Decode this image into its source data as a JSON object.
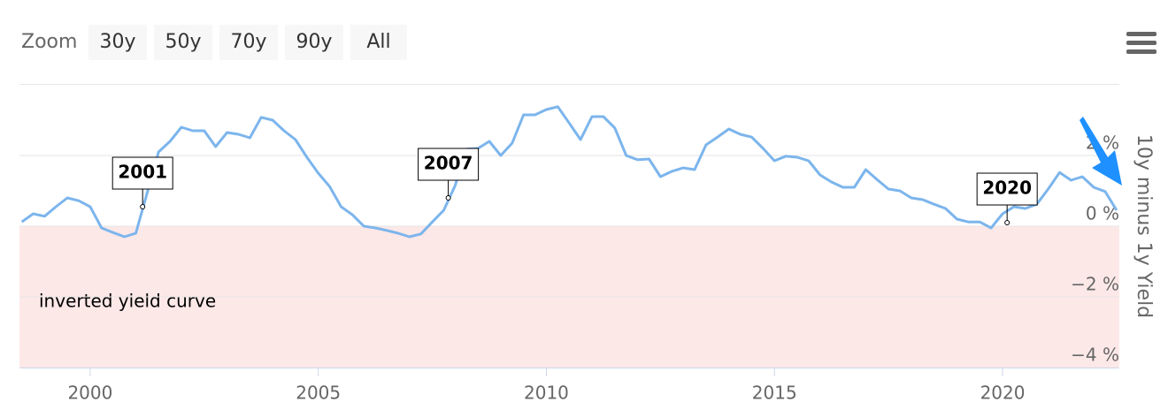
{
  "toolbar": {
    "zoom_label": "Zoom",
    "buttons": [
      "30y",
      "50y",
      "70y",
      "90y",
      "All"
    ]
  },
  "chart_data": {
    "type": "line",
    "color": "#7cb5ec",
    "y_axis_title": "10y minus 1y Yield",
    "xlim": [
      1998.45,
      2022.56
    ],
    "xticks": [
      2000,
      2005,
      2010,
      2015,
      2020
    ],
    "ylim": [
      -4,
      4
    ],
    "yticks": [
      {
        "value": -4,
        "label": "−4 %"
      },
      {
        "value": -2,
        "label": "−2 %"
      },
      {
        "value": 0,
        "label": "0 %"
      },
      {
        "value": 2,
        "label": "2 %"
      }
    ],
    "grid": true,
    "plot_band": {
      "from": 0,
      "to": -4,
      "color": "#fde8e8",
      "label": "inverted yield curve"
    },
    "annotations": [
      {
        "text": "2001",
        "x": 2001.15,
        "y": 0.55
      },
      {
        "text": "2007",
        "x": 2007.85,
        "y": 0.8
      },
      {
        "text": "2020",
        "x": 2020.1,
        "y": 0.1
      }
    ],
    "x": [
      1998.5,
      1998.75,
      1999.0,
      1999.25,
      1999.5,
      1999.75,
      2000.0,
      2000.25,
      2000.5,
      2000.75,
      2001.0,
      2001.25,
      2001.5,
      2001.75,
      2002.0,
      2002.25,
      2002.5,
      2002.75,
      2003.0,
      2003.25,
      2003.5,
      2003.75,
      2004.0,
      2004.25,
      2004.5,
      2004.75,
      2005.0,
      2005.25,
      2005.5,
      2005.75,
      2006.0,
      2006.25,
      2006.5,
      2006.75,
      2007.0,
      2007.25,
      2007.5,
      2007.75,
      2008.0,
      2008.25,
      2008.5,
      2008.75,
      2009.0,
      2009.25,
      2009.5,
      2009.75,
      2010.0,
      2010.25,
      2010.5,
      2010.75,
      2011.0,
      2011.25,
      2011.5,
      2011.75,
      2012.0,
      2012.25,
      2012.5,
      2012.75,
      2013.0,
      2013.25,
      2013.5,
      2013.75,
      2014.0,
      2014.25,
      2014.5,
      2014.75,
      2015.0,
      2015.25,
      2015.5,
      2015.75,
      2016.0,
      2016.25,
      2016.5,
      2016.75,
      2017.0,
      2017.25,
      2017.5,
      2017.75,
      2018.0,
      2018.25,
      2018.5,
      2018.75,
      2019.0,
      2019.25,
      2019.5,
      2019.75,
      2020.0,
      2020.25,
      2020.5,
      2020.75,
      2021.0,
      2021.25,
      2021.5,
      2021.75,
      2022.0,
      2022.25,
      2022.5
    ],
    "values": [
      0.12,
      0.35,
      0.28,
      0.55,
      0.8,
      0.72,
      0.55,
      -0.05,
      -0.18,
      -0.3,
      -0.2,
      0.95,
      2.1,
      2.4,
      2.8,
      2.7,
      2.7,
      2.25,
      2.65,
      2.6,
      2.5,
      3.08,
      3.0,
      2.7,
      2.45,
      1.95,
      1.5,
      1.12,
      0.55,
      0.32,
      0,
      -0.05,
      -0.12,
      -0.2,
      -0.3,
      -0.22,
      0.12,
      0.45,
      1.15,
      2.18,
      2.2,
      2.4,
      2.0,
      2.35,
      3.15,
      3.15,
      3.3,
      3.38,
      2.92,
      2.45,
      3.1,
      3.1,
      2.78,
      2.0,
      1.88,
      1.9,
      1.4,
      1.55,
      1.65,
      1.6,
      2.3,
      2.52,
      2.75,
      2.6,
      2.52,
      2.2,
      1.85,
      1.98,
      1.95,
      1.85,
      1.45,
      1.25,
      1.1,
      1.1,
      1.6,
      1.32,
      1.05,
      1.0,
      0.8,
      0.75,
      0.62,
      0.5,
      0.2,
      0.12,
      0.12,
      -0.05,
      0.35,
      0.55,
      0.5,
      0.62,
      1.05,
      1.52,
      1.3,
      1.4,
      1.1,
      0.98,
      0.45
    ]
  }
}
